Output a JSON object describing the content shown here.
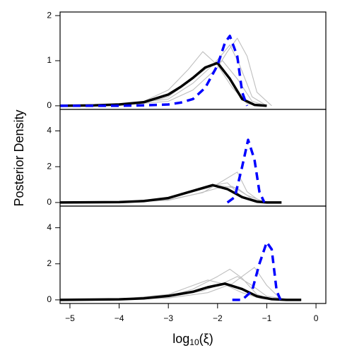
{
  "chart_data": [
    {
      "type": "line",
      "xlim": [
        -5.2,
        0.2
      ],
      "ylim": [
        -0.08,
        2.08
      ],
      "yticks": [
        0,
        1,
        2
      ],
      "series": [
        {
          "color": "#bebebe",
          "x": [
            -5.2,
            -4,
            -3.5,
            -3,
            -2.5,
            -2.2,
            -1.9,
            -1.6,
            -1.3,
            -1.0
          ],
          "values": [
            0,
            0.02,
            0.06,
            0.2,
            0.6,
            0.85,
            1.0,
            0.6,
            0.1,
            0
          ]
        },
        {
          "color": "#bebebe",
          "x": [
            -5.2,
            -4,
            -3,
            -2.5,
            -2,
            -1.8,
            -1.6,
            -1.4,
            -1.2,
            -0.9
          ],
          "values": [
            0,
            0.01,
            0.1,
            0.35,
            0.85,
            1.2,
            1.5,
            1.1,
            0.3,
            0
          ]
        },
        {
          "color": "#bebebe",
          "x": [
            -5.2,
            -4,
            -3.5,
            -3,
            -2.6,
            -2.3,
            -2,
            -1.7,
            -1.4,
            -1.1
          ],
          "values": [
            0,
            0.03,
            0.1,
            0.35,
            0.8,
            1.2,
            0.9,
            0.4,
            0.05,
            0
          ]
        },
        {
          "color": "#bebebe",
          "x": [
            -5.2,
            -4,
            -3,
            -2.5,
            -2.1,
            -1.9,
            -1.75,
            -1.55,
            -1.3,
            -1.0
          ],
          "values": [
            0,
            0.02,
            0.15,
            0.5,
            0.9,
            1.15,
            1.35,
            0.9,
            0.2,
            0
          ]
        },
        {
          "color": "#000000",
          "x": [
            -5.2,
            -4.5,
            -4,
            -3.5,
            -3,
            -2.75,
            -2.5,
            -2.25,
            -2,
            -1.75,
            -1.5,
            -1.25,
            -1
          ],
          "values": [
            0,
            0.01,
            0.03,
            0.08,
            0.25,
            0.42,
            0.62,
            0.85,
            0.95,
            0.6,
            0.15,
            0.02,
            0
          ]
        },
        {
          "color": "#0000ff",
          "linestyle": "dashed",
          "x": [
            -5.2,
            -4,
            -3.5,
            -3,
            -2.75,
            -2.5,
            -2.25,
            -2,
            -1.85,
            -1.75,
            -1.6,
            -1.5,
            -1.4
          ],
          "values": [
            0,
            0,
            0.01,
            0.03,
            0.07,
            0.15,
            0.4,
            0.9,
            1.4,
            1.55,
            1.1,
            0.3,
            0
          ]
        }
      ]
    },
    {
      "type": "line",
      "xlim": [
        -5.2,
        0.2
      ],
      "ylim": [
        -0.2,
        5.2
      ],
      "yticks": [
        0,
        2,
        4
      ],
      "ylabel": "Posterior Density",
      "series": [
        {
          "color": "#bebebe",
          "x": [
            -5.2,
            -4,
            -3,
            -2.5,
            -2,
            -1.6,
            -1.3,
            -1
          ],
          "values": [
            0,
            0.02,
            0.2,
            0.6,
            0.95,
            0.8,
            0.2,
            0
          ]
        },
        {
          "color": "#bebebe",
          "x": [
            -5.2,
            -4,
            -3,
            -2.3,
            -1.9,
            -1.6,
            -1.4,
            -1.1
          ],
          "values": [
            0,
            0.01,
            0.15,
            0.55,
            1.2,
            1.7,
            0.6,
            0
          ]
        },
        {
          "color": "#bebebe",
          "x": [
            -5.2,
            -4,
            -3,
            -2.5,
            -2.1,
            -1.8,
            -1.5,
            -1.2
          ],
          "values": [
            0,
            0.02,
            0.25,
            0.6,
            0.95,
            1.1,
            0.3,
            0
          ]
        },
        {
          "color": "#bebebe",
          "x": [
            -5.2,
            -4,
            -3,
            -2.4,
            -2,
            -1.7,
            -1.4,
            -1.0
          ],
          "values": [
            0,
            0.01,
            0.12,
            0.5,
            0.8,
            0.9,
            0.4,
            0
          ]
        },
        {
          "color": "#000000",
          "x": [
            -5.2,
            -4,
            -3.5,
            -3,
            -2.5,
            -2.1,
            -1.8,
            -1.5,
            -1.2,
            -1,
            -0.7
          ],
          "values": [
            0,
            0.02,
            0.08,
            0.25,
            0.65,
            0.97,
            0.75,
            0.3,
            0.05,
            0,
            0
          ]
        },
        {
          "color": "#0000ff",
          "linestyle": "dashed",
          "x": [
            -1.8,
            -1.65,
            -1.5,
            -1.38,
            -1.25,
            -1.15,
            -1.05
          ],
          "values": [
            0,
            0.3,
            2.0,
            3.5,
            2.4,
            0.6,
            0
          ]
        }
      ]
    },
    {
      "type": "line",
      "xlim": [
        -5.2,
        0.2
      ],
      "ylim": [
        -0.2,
        5.2
      ],
      "yticks": [
        0,
        2,
        4
      ],
      "xticks": [
        {
          "value": -5,
          "label": "−5"
        },
        {
          "value": -4,
          "label": "−4"
        },
        {
          "value": -3,
          "label": "−3"
        },
        {
          "value": -2,
          "label": "−2"
        },
        {
          "value": -1,
          "label": "−1"
        },
        0
      ],
      "xlabel": {
        "base": "log",
        "sub": "10",
        "rest": "(ξ)"
      },
      "series": [
        {
          "color": "#bebebe",
          "x": [
            -5.2,
            -4,
            -3,
            -2.5,
            -2,
            -1.75,
            -1.5,
            -1.2,
            -0.9
          ],
          "values": [
            0,
            0.02,
            0.2,
            0.6,
            1.3,
            1.7,
            1.2,
            0.3,
            0
          ]
        },
        {
          "color": "#bebebe",
          "x": [
            -5.2,
            -4,
            -3,
            -2.2,
            -1.7,
            -1.45,
            -1.25,
            -1.0,
            -0.7
          ],
          "values": [
            0,
            0.01,
            0.1,
            0.4,
            0.9,
            1.4,
            1.8,
            0.8,
            0
          ]
        },
        {
          "color": "#bebebe",
          "x": [
            -5.2,
            -4,
            -3,
            -2.6,
            -2.2,
            -1.9,
            -1.5,
            -1.1,
            -0.8
          ],
          "values": [
            0,
            0.03,
            0.3,
            0.7,
            1.1,
            0.9,
            0.4,
            0.05,
            0
          ]
        },
        {
          "color": "#bebebe",
          "x": [
            -5.2,
            -4,
            -3,
            -2.3,
            -1.9,
            -1.6,
            -1.3,
            -1,
            -0.5
          ],
          "values": [
            0,
            0.02,
            0.15,
            0.5,
            0.9,
            1.3,
            0.8,
            0.2,
            0
          ]
        },
        {
          "color": "#000000",
          "x": [
            -5.2,
            -4,
            -3.5,
            -3,
            -2.5,
            -2.2,
            -1.85,
            -1.5,
            -1.2,
            -0.9,
            -0.6,
            -0.3
          ],
          "values": [
            0,
            0.03,
            0.08,
            0.22,
            0.45,
            0.7,
            0.9,
            0.6,
            0.2,
            0.04,
            0,
            0
          ]
        },
        {
          "color": "#0000ff",
          "linestyle": "dashed",
          "x": [
            -1.7,
            -1.5,
            -1.3,
            -1.15,
            -1.0,
            -0.9,
            -0.8,
            -0.72
          ],
          "values": [
            0,
            0,
            0.5,
            2.0,
            3.2,
            2.8,
            0.5,
            0
          ]
        }
      ]
    }
  ]
}
